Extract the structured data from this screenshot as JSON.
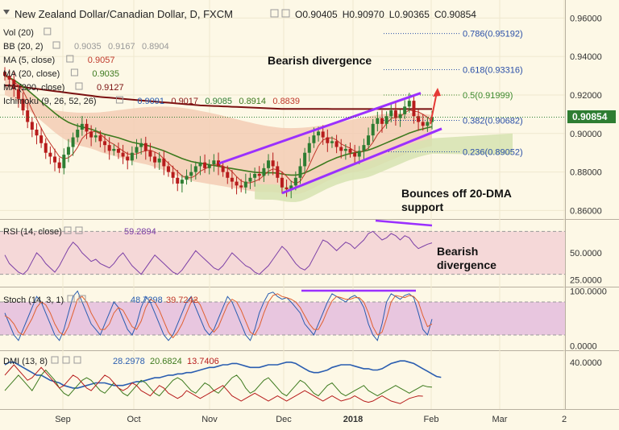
{
  "header": {
    "title": "New Zealand Dollar/Canadian Dollar, D, FXCM",
    "ohlc": [
      {
        "key": "O",
        "value": "0.90405"
      },
      {
        "key": "H",
        "value": "0.90970"
      },
      {
        "key": "L",
        "value": "0.90365"
      },
      {
        "key": "C",
        "value": "0.90854"
      }
    ]
  },
  "price_legend": [
    {
      "label": "Vol (20)",
      "values": [],
      "colors": []
    },
    {
      "label": "BB (20, 2)",
      "values": [
        "0.9035",
        "0.9167",
        "0.8904"
      ],
      "colors": [
        "#999999",
        "#999999",
        "#999999"
      ]
    },
    {
      "label": "MA (5, close)",
      "values": [
        "0.9057"
      ],
      "colors": [
        "#c0392b"
      ]
    },
    {
      "label": "MA (20, close)",
      "values": [
        "0.9035"
      ],
      "colors": [
        "#3d7a1e"
      ]
    },
    {
      "label": "MA (200, close)",
      "values": [
        "0.9127"
      ],
      "colors": [
        "#7a1010"
      ]
    },
    {
      "label": "Ichimoku (9, 26, 52, 26)",
      "values": [
        "0.9091",
        "0.9017",
        "0.9085",
        "0.8914",
        "0.8839"
      ],
      "colors": [
        "#2a5db0",
        "#8b1a1a",
        "#2e7d32",
        "#3d7a1e",
        "#c0392b"
      ]
    }
  ],
  "annotations": {
    "bearish_divergence_price": "Bearish divergence",
    "bounce_line1": "Bounces off 20-DMA",
    "bounce_line2": "support",
    "rsi_div_line1": "Bearish",
    "rsi_div_line2": "divergence"
  },
  "fibonacci": [
    {
      "label": "0.786(0.95192)",
      "level": 0.95192,
      "color": "#2a4fa8"
    },
    {
      "label": "0.618(0.93316)",
      "level": 0.93316,
      "color": "#2a4fa8"
    },
    {
      "label": "0.5(0.91999)",
      "level": 0.91999,
      "color": "#3d8a2e"
    },
    {
      "label": "0.382(0.90682)",
      "level": 0.90682,
      "color": "#2a4fa8"
    },
    {
      "label": "0.236(0.89052)",
      "level": 0.89052,
      "color": "#2a4fa8"
    }
  ],
  "current_price_label": "0.90854",
  "colors": {
    "candle_up": "#2e7d32",
    "candle_down": "#b71c1c",
    "channel": "#9b30ff",
    "arrow": "#e53935",
    "ma200": "#7a1010",
    "ma20": "#3d7a1e",
    "ma5": "#c0392b",
    "cloud_bear": "#f3c9b2",
    "cloud_bull": "#d6e3b0",
    "rsi_band": "#f5d8d8",
    "stoch_band": "#e8c6df"
  },
  "chart_data": [
    {
      "type": "line",
      "title": "New Zealand Dollar/Canadian Dollar, D, FXCM",
      "ylim": [
        0.856,
        0.966
      ],
      "y_ticks": [
        "0.96000",
        "0.94000",
        "0.92000",
        "0.90000",
        "0.88000",
        "0.86000"
      ],
      "x_ticks": [
        "Sep",
        "Oct",
        "Nov",
        "Dec",
        "2018",
        "Feb",
        "Mar",
        "2"
      ],
      "close": [
        0.93,
        0.928,
        0.923,
        0.918,
        0.912,
        0.906,
        0.902,
        0.899,
        0.895,
        0.89,
        0.888,
        0.885,
        0.882,
        0.889,
        0.893,
        0.898,
        0.902,
        0.905,
        0.901,
        0.898,
        0.899,
        0.896,
        0.894,
        0.891,
        0.892,
        0.89,
        0.888,
        0.886,
        0.89,
        0.893,
        0.895,
        0.891,
        0.888,
        0.885,
        0.887,
        0.883,
        0.88,
        0.877,
        0.874,
        0.876,
        0.878,
        0.88,
        0.883,
        0.885,
        0.882,
        0.884,
        0.886,
        0.883,
        0.88,
        0.877,
        0.875,
        0.873,
        0.872,
        0.875,
        0.877,
        0.879,
        0.878,
        0.882,
        0.886,
        0.883,
        0.877,
        0.872,
        0.871,
        0.873,
        0.877,
        0.883,
        0.89,
        0.895,
        0.899,
        0.901,
        0.898,
        0.895,
        0.896,
        0.893,
        0.891,
        0.892,
        0.89,
        0.888,
        0.891,
        0.894,
        0.899,
        0.905,
        0.908,
        0.905,
        0.909,
        0.912,
        0.908,
        0.91,
        0.914,
        0.917,
        0.909,
        0.906,
        0.904,
        0.906,
        0.9085
      ],
      "ma200": [
        0.925,
        0.9249,
        0.9247,
        0.9245,
        0.9242,
        0.9238,
        0.9235,
        0.9232,
        0.9229,
        0.9226,
        0.9223,
        0.922,
        0.9217,
        0.9214,
        0.9211,
        0.9208,
        0.9205,
        0.9202,
        0.9199,
        0.9196,
        0.9193,
        0.919,
        0.9188,
        0.9186,
        0.9184,
        0.9182,
        0.918,
        0.9178,
        0.9176,
        0.9174,
        0.9172,
        0.917,
        0.9168,
        0.9166,
        0.9164,
        0.9162,
        0.916,
        0.9158,
        0.9156,
        0.9154,
        0.9152,
        0.915,
        0.9148,
        0.9146,
        0.9145,
        0.9144,
        0.9143,
        0.9142,
        0.9141,
        0.914,
        0.9139,
        0.9138,
        0.9137,
        0.9136,
        0.9135,
        0.9134,
        0.9133,
        0.9132,
        0.9131,
        0.913,
        0.9129,
        0.9128,
        0.9128,
        0.9128,
        0.9128,
        0.9128,
        0.9128,
        0.9128,
        0.9128,
        0.9128,
        0.9128,
        0.9128,
        0.9127,
        0.9127,
        0.9127,
        0.9127,
        0.9127,
        0.9127,
        0.9127,
        0.9127,
        0.9127,
        0.9127,
        0.9127,
        0.9127,
        0.9127,
        0.9127,
        0.9127,
        0.9127,
        0.9127,
        0.9127,
        0.9127,
        0.9127,
        0.9127,
        0.9127,
        0.9127
      ],
      "ma20": [
        0.93,
        0.929,
        0.9278,
        0.9262,
        0.9245,
        0.9226,
        0.9206,
        0.9186,
        0.9166,
        0.9146,
        0.9126,
        0.9106,
        0.9088,
        0.9072,
        0.9058,
        0.9048,
        0.904,
        0.9034,
        0.9028,
        0.9022,
        0.9014,
        0.9004,
        0.8996,
        0.899,
        0.8984,
        0.8978,
        0.897,
        0.8962,
        0.8955,
        0.895,
        0.8945,
        0.894,
        0.8934,
        0.8926,
        0.8918,
        0.891,
        0.89,
        0.889,
        0.888,
        0.887,
        0.8862,
        0.8855,
        0.885,
        0.8846,
        0.8842,
        0.8838,
        0.8834,
        0.883,
        0.8826,
        0.8822,
        0.8818,
        0.8814,
        0.881,
        0.8806,
        0.8802,
        0.8799,
        0.8797,
        0.8796,
        0.8796,
        0.8796,
        0.8794,
        0.879,
        0.8786,
        0.8784,
        0.8784,
        0.8788,
        0.8796,
        0.8806,
        0.8818,
        0.883,
        0.8842,
        0.8854,
        0.8864,
        0.8874,
        0.8882,
        0.889,
        0.8896,
        0.89,
        0.8904,
        0.8908,
        0.8914,
        0.8922,
        0.8932,
        0.8942,
        0.8952,
        0.8962,
        0.8972,
        0.8982,
        0.8992,
        0.9002,
        0.901,
        0.9018,
        0.9024,
        0.903,
        0.9035
      ]
    },
    {
      "type": "line",
      "title": "RSI (14, close)",
      "value_label": "59.2894",
      "ylim": [
        20,
        80
      ],
      "y_ticks": [
        "50.0000",
        "25.0000"
      ],
      "band": [
        30,
        70
      ],
      "values": [
        48,
        40,
        36,
        32,
        30,
        34,
        42,
        50,
        46,
        40,
        36,
        32,
        38,
        46,
        54,
        60,
        56,
        50,
        46,
        42,
        44,
        40,
        38,
        36,
        40,
        46,
        50,
        44,
        38,
        34,
        30,
        36,
        42,
        48,
        44,
        40,
        36,
        32,
        30,
        34,
        40,
        46,
        52,
        48,
        44,
        40,
        36,
        34,
        38,
        44,
        50,
        46,
        42,
        38,
        36,
        32,
        30,
        34,
        38,
        44,
        50,
        56,
        52,
        46,
        40,
        36,
        34,
        38,
        46,
        54,
        62,
        60,
        56,
        52,
        56,
        60,
        58,
        54,
        58,
        62,
        68,
        70,
        66,
        62,
        64,
        68,
        66,
        62,
        66,
        64,
        58,
        54,
        56,
        58,
        59.3
      ]
    },
    {
      "type": "line",
      "title": "Stoch (14, 3, 1)",
      "value_label": "48.7298",
      "value_label_2": "39.7242",
      "ylim": [
        -5,
        105
      ],
      "y_ticks": [
        "100.0000",
        "0.0000"
      ],
      "band": [
        20,
        80
      ],
      "series": [
        {
          "name": "K",
          "values": [
            60,
            40,
            20,
            10,
            30,
            50,
            70,
            90,
            80,
            60,
            40,
            20,
            10,
            30,
            60,
            90,
            100,
            80,
            60,
            40,
            30,
            20,
            40,
            60,
            80,
            70,
            50,
            30,
            20,
            40,
            70,
            90,
            80,
            60,
            40,
            20,
            10,
            20,
            40,
            60,
            80,
            90,
            70,
            50,
            30,
            20,
            30,
            50,
            70,
            90,
            80,
            60,
            40,
            20,
            10,
            30,
            60,
            80,
            95,
            98,
            90,
            85,
            88,
            80,
            70,
            60,
            40,
            30,
            20,
            40,
            60,
            80,
            95,
            90,
            85,
            80,
            88,
            92,
            85,
            70,
            40,
            20,
            10,
            40,
            80,
            95,
            90,
            85,
            92,
            95,
            88,
            60,
            30,
            20,
            49
          ]
        },
        {
          "name": "D",
          "values": [
            55,
            50,
            40,
            25,
            20,
            35,
            50,
            70,
            80,
            75,
            60,
            40,
            25,
            20,
            35,
            60,
            85,
            90,
            80,
            60,
            45,
            30,
            30,
            40,
            60,
            70,
            65,
            50,
            35,
            30,
            45,
            70,
            85,
            80,
            65,
            45,
            25,
            15,
            25,
            40,
            60,
            80,
            85,
            75,
            55,
            35,
            25,
            35,
            55,
            75,
            85,
            80,
            65,
            45,
            25,
            20,
            35,
            60,
            80,
            92,
            95,
            90,
            88,
            85,
            80,
            70,
            55,
            40,
            30,
            30,
            45,
            65,
            82,
            90,
            88,
            85,
            85,
            88,
            88,
            80,
            60,
            35,
            20,
            25,
            50,
            80,
            92,
            90,
            88,
            92,
            90,
            80,
            55,
            35,
            40
          ]
        }
      ]
    },
    {
      "type": "line",
      "title": "DMI (13, 8)",
      "y_ticks": [
        "40.0000"
      ],
      "ylim": [
        5,
        48
      ],
      "series": [
        {
          "name": "+DI",
          "value_label": "28.2978",
          "values": [
            38,
            40,
            40,
            38,
            36,
            34,
            32,
            30,
            30,
            28,
            26,
            25,
            24,
            22,
            21,
            20,
            20,
            21,
            22,
            23,
            24,
            24,
            24,
            23,
            22,
            22,
            22,
            23,
            24,
            25,
            25,
            26,
            27,
            28,
            28,
            29,
            30,
            30,
            31,
            31,
            32,
            32,
            33,
            34,
            35,
            36,
            36,
            37,
            38,
            38,
            39,
            39,
            38,
            37,
            36,
            36,
            36,
            37,
            38,
            38,
            38,
            39,
            40,
            40,
            39,
            37,
            35,
            33,
            32,
            32,
            33,
            34,
            36,
            37,
            38,
            38,
            38,
            37,
            36,
            35,
            35,
            34,
            34,
            35,
            37,
            39,
            40,
            41,
            41,
            40,
            39,
            37,
            35,
            33,
            31,
            29,
            28.3
          ]
        },
        {
          "name": "-DI",
          "value_label": "20.6824",
          "values": [
            18,
            22,
            26,
            30,
            26,
            22,
            18,
            24,
            30,
            34,
            30,
            26,
            20,
            16,
            14,
            18,
            22,
            26,
            28,
            26,
            22,
            18,
            16,
            20,
            24,
            20,
            16,
            14,
            18,
            22,
            26,
            24,
            20,
            16,
            14,
            18,
            22,
            26,
            28,
            26,
            22,
            18,
            16,
            20,
            24,
            22,
            18,
            16,
            20,
            24,
            28,
            30,
            26,
            20,
            16,
            18,
            22,
            26,
            28,
            24,
            20,
            16,
            14,
            18,
            22,
            26,
            24,
            20,
            16,
            14,
            18,
            22,
            24,
            20,
            16,
            14,
            16,
            18,
            20,
            22,
            18,
            16,
            14,
            16,
            18,
            20,
            22,
            20,
            18,
            16,
            18,
            20,
            22,
            21,
            20.7
          ]
        },
        {
          "name": "ADX",
          "value_label": "13.7406",
          "values": [
            30,
            34,
            38,
            34,
            30,
            26,
            28,
            32,
            36,
            32,
            28,
            24,
            20,
            22,
            26,
            30,
            28,
            24,
            20,
            18,
            22,
            26,
            30,
            28,
            24,
            20,
            18,
            20,
            24,
            22,
            18,
            16,
            14,
            18,
            22,
            20,
            16,
            14,
            12,
            14,
            18,
            16,
            14,
            12,
            14,
            16,
            18,
            20,
            22,
            18,
            14,
            12,
            10,
            12,
            14,
            16,
            14,
            12,
            10,
            12,
            14,
            12,
            10,
            12,
            14,
            16,
            18,
            16,
            14,
            12,
            10,
            12,
            14,
            12,
            10,
            11,
            12,
            14,
            12,
            10,
            9,
            10,
            12,
            14,
            12,
            10,
            9,
            8,
            10,
            12,
            13,
            14,
            13.7
          ]
        }
      ]
    }
  ]
}
